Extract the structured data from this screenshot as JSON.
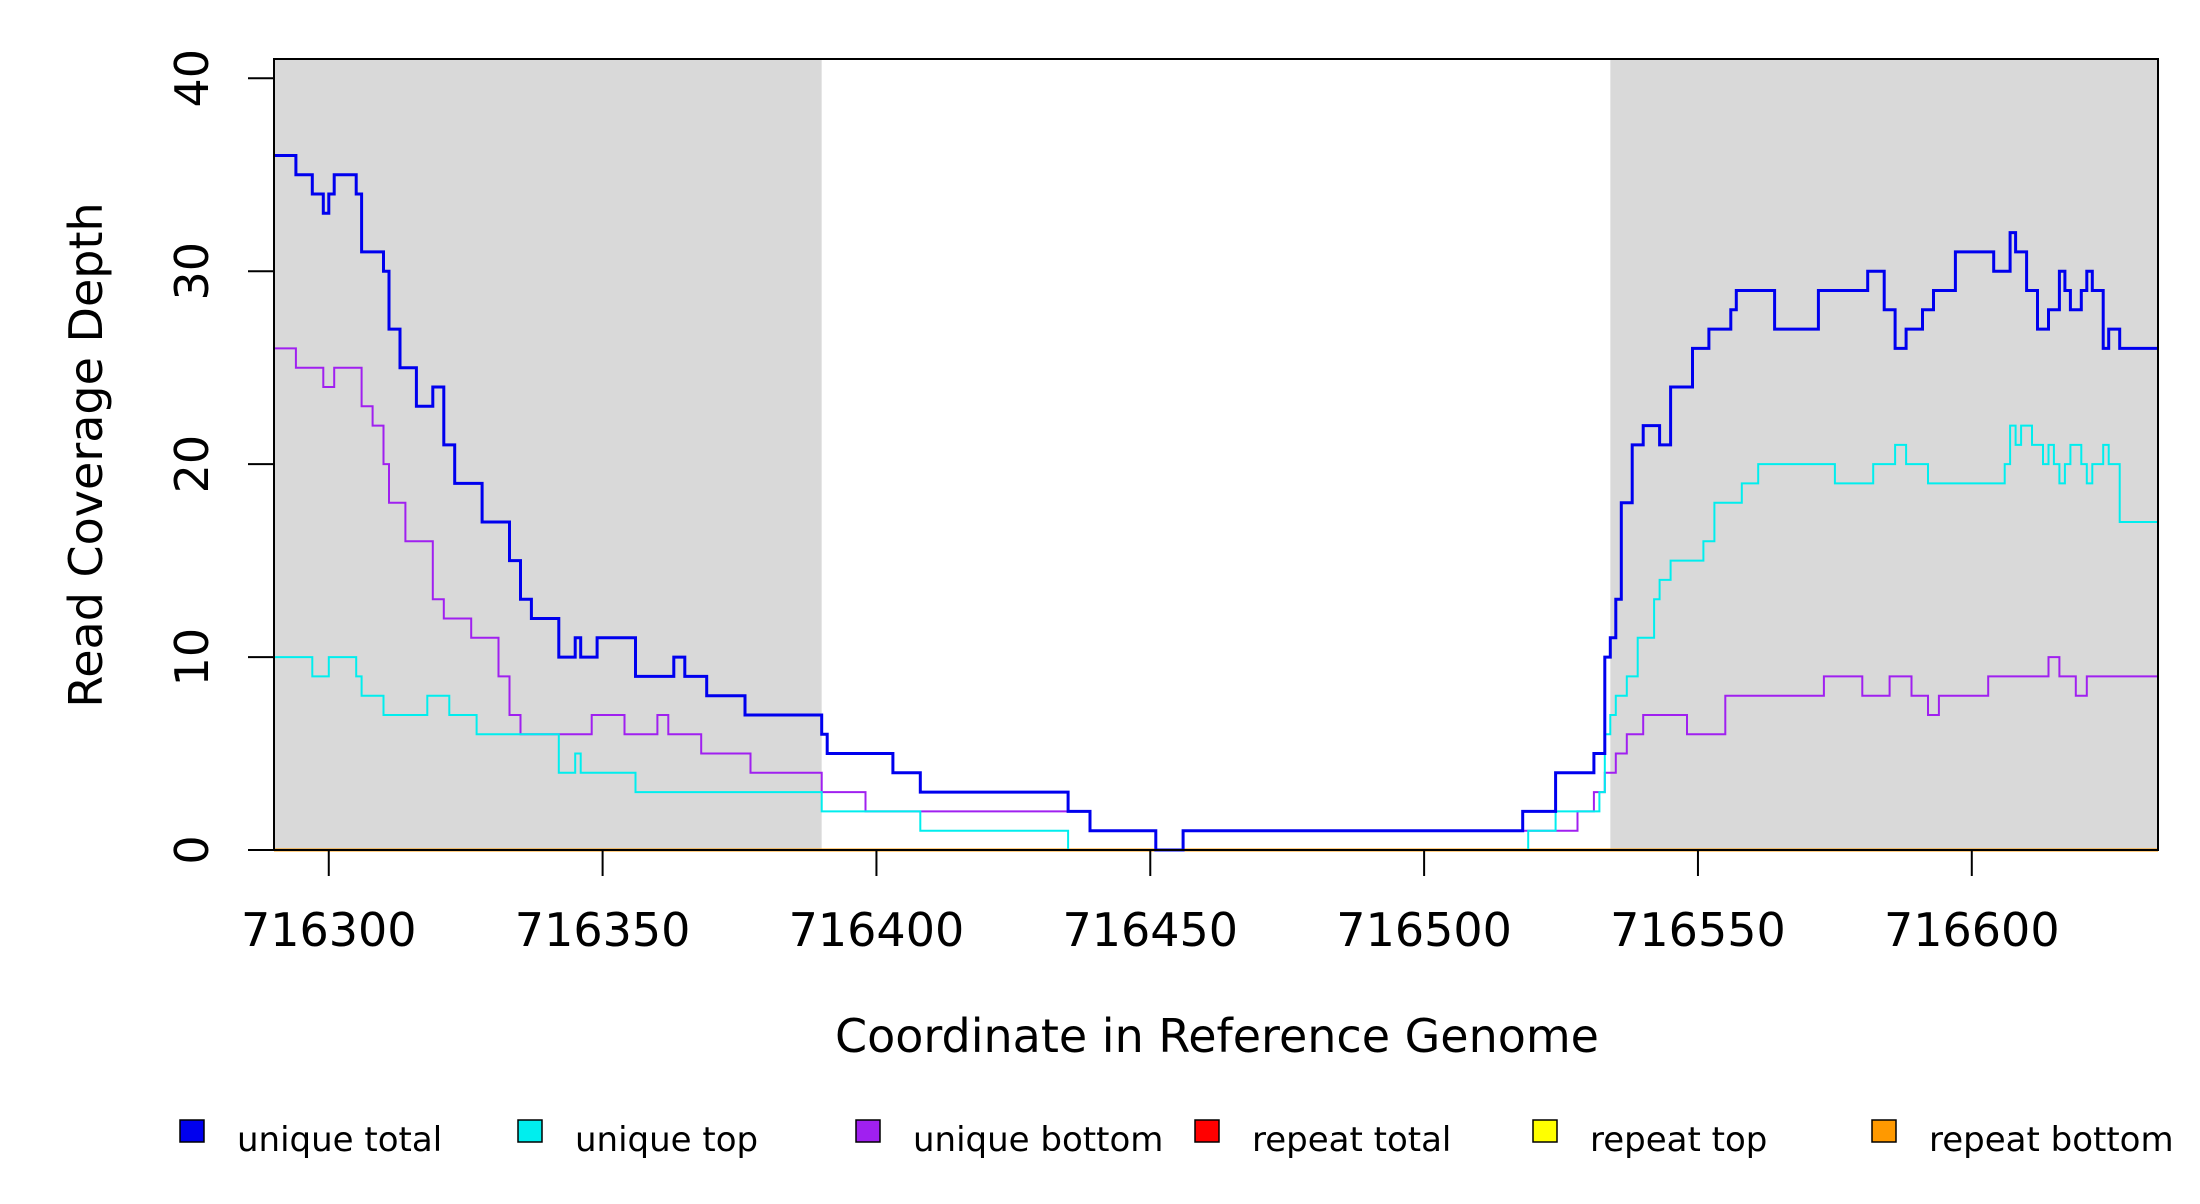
{
  "chart_data": {
    "type": "line",
    "title": "",
    "xlabel": "Coordinate in Reference Genome",
    "ylabel": "Read Coverage Depth",
    "xlim": [
      716290,
      716634
    ],
    "ylim": [
      0,
      41
    ],
    "x_ticks": [
      716300,
      716350,
      716400,
      716450,
      716500,
      716550,
      716600
    ],
    "y_ticks": [
      0,
      10,
      20,
      30,
      40
    ],
    "grid": false,
    "legend_position": "bottom",
    "step": true,
    "shaded_regions": [
      {
        "x_start": 716290,
        "x_end": 716390,
        "color": "#d9d9d9"
      },
      {
        "x_start": 716534,
        "x_end": 716634,
        "color": "#d9d9d9"
      }
    ],
    "series": [
      {
        "name": "unique total",
        "color": "#0000ee",
        "x": [
          716290,
          716294,
          716297,
          716299,
          716300,
          716301,
          716305,
          716306,
          716310,
          716311,
          716313,
          716316,
          716319,
          716321,
          716323,
          716328,
          716333,
          716335,
          716337,
          716342,
          716345,
          716346,
          716349,
          716356,
          716363,
          716365,
          716369,
          716376,
          716380,
          716390,
          716391,
          716403,
          716408,
          716435,
          716439,
          716451,
          716456,
          716518,
          716524,
          716531,
          716533,
          716534,
          716535,
          716536,
          716538,
          716540,
          716543,
          716545,
          716549,
          716552,
          716556,
          716557,
          716564,
          716572,
          716581,
          716584,
          716586,
          716588,
          716591,
          716593,
          716597,
          716604,
          716607,
          716608,
          716610,
          716612,
          716614,
          716616,
          716617,
          716618,
          716620,
          716621,
          716622,
          716624,
          716625,
          716627,
          716628,
          716629,
          716633
        ],
        "values": [
          36,
          35,
          34,
          33,
          34,
          35,
          34,
          31,
          30,
          27,
          25,
          23,
          24,
          21,
          19,
          17,
          15,
          13,
          12,
          10,
          11,
          10,
          11,
          9,
          10,
          9,
          8,
          7,
          7,
          6,
          5,
          4,
          3,
          2,
          1,
          0,
          1,
          2,
          4,
          5,
          10,
          11,
          13,
          18,
          21,
          22,
          21,
          24,
          26,
          27,
          28,
          29,
          27,
          29,
          30,
          28,
          26,
          27,
          28,
          29,
          31,
          30,
          32,
          31,
          29,
          27,
          28,
          30,
          29,
          28,
          29,
          30,
          29,
          26,
          27,
          26,
          26,
          26,
          26
        ]
      },
      {
        "name": "unique top",
        "color": "#00eeee",
        "x": [
          716290,
          716297,
          716300,
          716305,
          716306,
          716310,
          716318,
          716322,
          716327,
          716342,
          716345,
          716346,
          716356,
          716380,
          716390,
          716398,
          716408,
          716435,
          716519,
          716524,
          716532,
          716533,
          716534,
          716535,
          716537,
          716539,
          716542,
          716543,
          716545,
          716551,
          716553,
          716558,
          716561,
          716565,
          716575,
          716582,
          716586,
          716588,
          716590,
          716592,
          716598,
          716606,
          716607,
          716608,
          716609,
          716611,
          716613,
          716614,
          716615,
          716616,
          716617,
          716618,
          716620,
          716621,
          716622,
          716624,
          716625,
          716627,
          716629,
          716633
        ],
        "values": [
          10,
          9,
          10,
          9,
          8,
          7,
          8,
          7,
          6,
          4,
          5,
          4,
          3,
          3,
          2,
          2,
          1,
          0,
          1,
          2,
          3,
          6,
          7,
          8,
          9,
          11,
          13,
          14,
          15,
          16,
          18,
          19,
          20,
          20,
          19,
          20,
          21,
          20,
          20,
          19,
          19,
          20,
          22,
          21,
          22,
          21,
          20,
          21,
          20,
          19,
          20,
          21,
          20,
          19,
          20,
          21,
          20,
          17,
          17,
          17
        ],
        "linewidth": 2
      },
      {
        "name": "unique bottom",
        "color": "#a020f0",
        "x": [
          716290,
          716294,
          716299,
          716301,
          716306,
          716308,
          716310,
          716311,
          716314,
          716319,
          716321,
          716326,
          716331,
          716333,
          716335,
          716338,
          716348,
          716354,
          716360,
          716362,
          716364,
          716368,
          716377,
          716388,
          716390,
          716398,
          716402,
          716405,
          716408,
          716439,
          716451,
          716456,
          716528,
          716531,
          716533,
          716535,
          716537,
          716540,
          716544,
          716548,
          716555,
          716561,
          716570,
          716573,
          716580,
          716582,
          716585,
          716589,
          716592,
          716594,
          716598,
          716603,
          716608,
          716612,
          716614,
          716616,
          716619,
          716621,
          716625,
          716628,
          716633
        ],
        "values": [
          26,
          25,
          24,
          25,
          23,
          22,
          20,
          18,
          16,
          13,
          12,
          11,
          9,
          7,
          6,
          6,
          7,
          6,
          7,
          6,
          6,
          5,
          4,
          4,
          3,
          2,
          2,
          2,
          2,
          1,
          0,
          1,
          2,
          3,
          4,
          5,
          6,
          7,
          7,
          6,
          8,
          8,
          8,
          9,
          8,
          8,
          9,
          8,
          7,
          8,
          8,
          9,
          9,
          9,
          10,
          9,
          8,
          9,
          9,
          9,
          9
        ],
        "linewidth": 2
      },
      {
        "name": "repeat total",
        "color": "#ff0000",
        "x": [
          716290,
          716634
        ],
        "values": [
          0,
          0
        ],
        "linewidth": 2
      },
      {
        "name": "repeat top",
        "color": "#ffff00",
        "x": [
          716290,
          716634
        ],
        "values": [
          0,
          0
        ],
        "linewidth": 2
      },
      {
        "name": "repeat bottom",
        "color": "#ff9900",
        "x": [
          716290,
          716634
        ],
        "values": [
          0,
          0
        ],
        "linewidth": 3
      }
    ]
  }
}
